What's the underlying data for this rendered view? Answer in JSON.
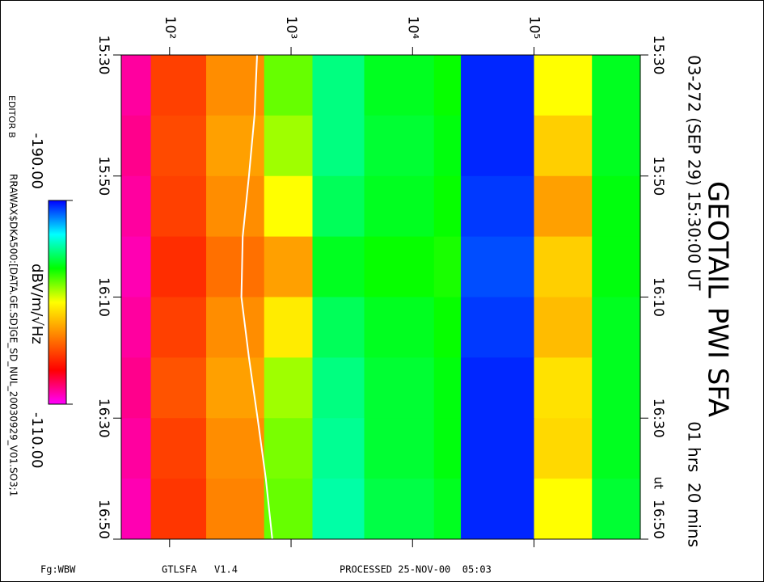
{
  "chart_data": {
    "type": "heatmap",
    "title": "GEOTAIL PWI SFA",
    "subtitle": "03-272 (SEP 29) 15:30:00 UT",
    "duration": "01 hrs  20 mins",
    "xscale": "log",
    "xlim": [
      40,
      750000
    ],
    "xticks": [
      {
        "value": 100,
        "label": "10²"
      },
      {
        "value": 1000,
        "label": "10³"
      },
      {
        "value": 10000,
        "label": "10⁴"
      },
      {
        "value": 100000,
        "label": "10⁵"
      }
    ],
    "ylim": [
      "15:30",
      "16:50"
    ],
    "yticks": [
      "15:30",
      "15:50",
      "16:10",
      "16:30",
      "16:50"
    ],
    "y_annotation": "ut",
    "x_bins": [
      40,
      70,
      200,
      600,
      1500,
      4000,
      15000,
      25000,
      100000,
      300000,
      750000
    ],
    "y_bins": [
      "15:30",
      "15:40",
      "15:50",
      "16:00",
      "16:10",
      "16:20",
      "16:30",
      "16:40",
      "16:50"
    ],
    "z": [
      [
        -115,
        -130,
        -138,
        -158,
        -170,
        -165,
        -163,
        -188,
        -150,
        -165
      ],
      [
        -116,
        -131,
        -140,
        -155,
        -170,
        -166,
        -164,
        -188,
        -145,
        -165
      ],
      [
        -115,
        -130,
        -138,
        -150,
        -168,
        -165,
        -163,
        -187,
        -140,
        -164
      ],
      [
        -114,
        -128,
        -135,
        -140,
        -165,
        -163,
        -162,
        -186,
        -145,
        -164
      ],
      [
        -115,
        -130,
        -138,
        -148,
        -168,
        -165,
        -163,
        -187,
        -143,
        -165
      ],
      [
        -116,
        -132,
        -140,
        -155,
        -170,
        -166,
        -164,
        -188,
        -147,
        -165
      ],
      [
        -115,
        -130,
        -138,
        -157,
        -171,
        -166,
        -164,
        -188,
        -146,
        -165
      ],
      [
        -114,
        -129,
        -137,
        -158,
        -172,
        -167,
        -165,
        -188,
        -150,
        -166
      ]
    ],
    "colorbar": {
      "label": "dBV/m/√Hz",
      "lim": [
        -190,
        -110
      ],
      "ticks": [
        {
          "value": -190,
          "label": "-190.00"
        },
        {
          "value": -110,
          "label": "-110.00"
        }
      ],
      "colors": [
        "#0000ff",
        "#00ffff",
        "#00ff00",
        "#ffff00",
        "#ff8000",
        "#ff0000",
        "#ff00ff"
      ]
    },
    "trace": {
      "color": "#ffffff",
      "x": [
        "15:30",
        "15:40",
        "15:50",
        "16:00",
        "16:10",
        "16:20",
        "16:30",
        "16:40",
        "16:50"
      ],
      "values": [
        525,
        500,
        450,
        400,
        390,
        450,
        530,
        620,
        700
      ]
    }
  },
  "page": {
    "editor": "EDITOR B",
    "file": "RRAWAX$DKA500:[DATA.GE.SD]GE_SD_NUL_20030929_V01.SO3;1",
    "footer": [
      "Fg:WBW",
      "GTLSFA   V1.4",
      "PROCESSED 25-NOV-00  05:03"
    ]
  }
}
